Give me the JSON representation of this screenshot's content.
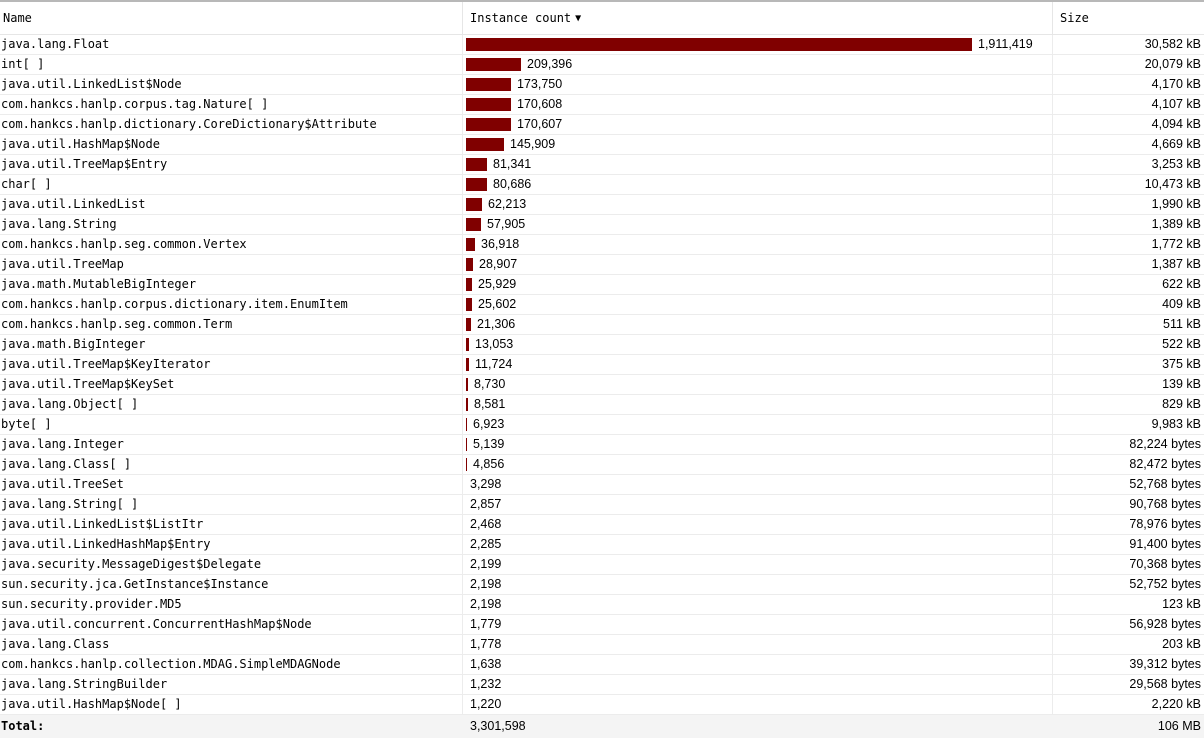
{
  "header": {
    "name": "Name",
    "instance_count": "Instance count",
    "size": "Size",
    "sort_icon": "triangle-down"
  },
  "bar_color": "#800000",
  "rows": [
    {
      "name": "java.lang.Float",
      "count": 1911419,
      "count_label": "1,911,419",
      "size": "30,582 kB"
    },
    {
      "name": "int[ ]",
      "count": 209396,
      "count_label": "209,396",
      "size": "20,079 kB"
    },
    {
      "name": "java.util.LinkedList$Node",
      "count": 173750,
      "count_label": "173,750",
      "size": "4,170 kB"
    },
    {
      "name": "com.hankcs.hanlp.corpus.tag.Nature[ ]",
      "count": 170608,
      "count_label": "170,608",
      "size": "4,107 kB"
    },
    {
      "name": "com.hankcs.hanlp.dictionary.CoreDictionary$Attribute",
      "count": 170607,
      "count_label": "170,607",
      "size": "4,094 kB"
    },
    {
      "name": "java.util.HashMap$Node",
      "count": 145909,
      "count_label": "145,909",
      "size": "4,669 kB"
    },
    {
      "name": "java.util.TreeMap$Entry",
      "count": 81341,
      "count_label": "81,341",
      "size": "3,253 kB"
    },
    {
      "name": "char[ ]",
      "count": 80686,
      "count_label": "80,686",
      "size": "10,473 kB"
    },
    {
      "name": "java.util.LinkedList",
      "count": 62213,
      "count_label": "62,213",
      "size": "1,990 kB"
    },
    {
      "name": "java.lang.String",
      "count": 57905,
      "count_label": "57,905",
      "size": "1,389 kB"
    },
    {
      "name": "com.hankcs.hanlp.seg.common.Vertex",
      "count": 36918,
      "count_label": "36,918",
      "size": "1,772 kB"
    },
    {
      "name": "java.util.TreeMap",
      "count": 28907,
      "count_label": "28,907",
      "size": "1,387 kB"
    },
    {
      "name": "java.math.MutableBigInteger",
      "count": 25929,
      "count_label": "25,929",
      "size": "622 kB"
    },
    {
      "name": "com.hankcs.hanlp.corpus.dictionary.item.EnumItem",
      "count": 25602,
      "count_label": "25,602",
      "size": "409 kB"
    },
    {
      "name": "com.hankcs.hanlp.seg.common.Term",
      "count": 21306,
      "count_label": "21,306",
      "size": "511 kB"
    },
    {
      "name": "java.math.BigInteger",
      "count": 13053,
      "count_label": "13,053",
      "size": "522 kB"
    },
    {
      "name": "java.util.TreeMap$KeyIterator",
      "count": 11724,
      "count_label": "11,724",
      "size": "375 kB"
    },
    {
      "name": "java.util.TreeMap$KeySet",
      "count": 8730,
      "count_label": "8,730",
      "size": "139 kB"
    },
    {
      "name": "java.lang.Object[ ]",
      "count": 8581,
      "count_label": "8,581",
      "size": "829 kB"
    },
    {
      "name": "byte[ ]",
      "count": 6923,
      "count_label": "6,923",
      "size": "9,983 kB"
    },
    {
      "name": "java.lang.Integer",
      "count": 5139,
      "count_label": "5,139",
      "size": "82,224 bytes"
    },
    {
      "name": "java.lang.Class[ ]",
      "count": 4856,
      "count_label": "4,856",
      "size": "82,472 bytes"
    },
    {
      "name": "java.util.TreeSet",
      "count": 3298,
      "count_label": "3,298",
      "size": "52,768 bytes"
    },
    {
      "name": "java.lang.String[ ]",
      "count": 2857,
      "count_label": "2,857",
      "size": "90,768 bytes"
    },
    {
      "name": "java.util.LinkedList$ListItr",
      "count": 2468,
      "count_label": "2,468",
      "size": "78,976 bytes"
    },
    {
      "name": "java.util.LinkedHashMap$Entry",
      "count": 2285,
      "count_label": "2,285",
      "size": "91,400 bytes"
    },
    {
      "name": "java.security.MessageDigest$Delegate",
      "count": 2199,
      "count_label": "2,199",
      "size": "70,368 bytes"
    },
    {
      "name": "sun.security.jca.GetInstance$Instance",
      "count": 2198,
      "count_label": "2,198",
      "size": "52,752 bytes"
    },
    {
      "name": "sun.security.provider.MD5",
      "count": 2198,
      "count_label": "2,198",
      "size": "123 kB"
    },
    {
      "name": "java.util.concurrent.ConcurrentHashMap$Node",
      "count": 1779,
      "count_label": "1,779",
      "size": "56,928 bytes"
    },
    {
      "name": "java.lang.Class",
      "count": 1778,
      "count_label": "1,778",
      "size": "203 kB"
    },
    {
      "name": "com.hankcs.hanlp.collection.MDAG.SimpleMDAGNode",
      "count": 1638,
      "count_label": "1,638",
      "size": "39,312 bytes"
    },
    {
      "name": "java.lang.StringBuilder",
      "count": 1232,
      "count_label": "1,232",
      "size": "29,568 bytes"
    },
    {
      "name": "java.util.HashMap$Node[ ]",
      "count": 1220,
      "count_label": "1,220",
      "size": "2,220 kB"
    }
  ],
  "total": {
    "label": "Total:",
    "count": "3,301,598",
    "size": "106 MB"
  }
}
